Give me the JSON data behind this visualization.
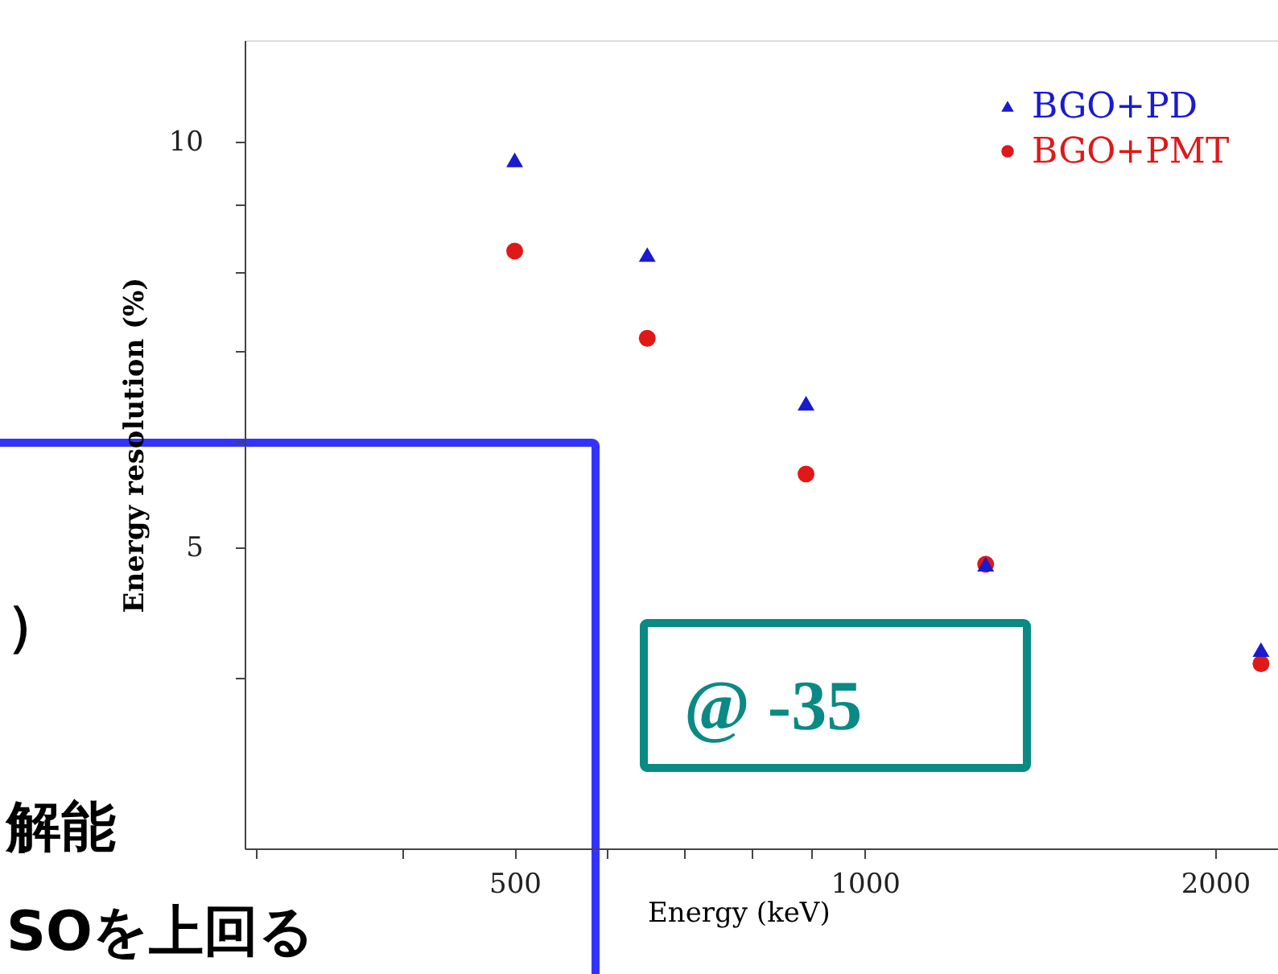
{
  "chart_data": {
    "type": "scatter",
    "xlabel": "Energy (keV)",
    "ylabel": "Energy resolution (%)",
    "log": "xy",
    "grid": false,
    "legend": "top right",
    "xlim": [
      293,
      2265
    ],
    "xticks": [
      {
        "value": 300,
        "label": null
      },
      {
        "value": 400,
        "label": null
      },
      500,
      {
        "value": 600,
        "label": null
      },
      {
        "value": 700,
        "label": null
      },
      {
        "value": 800,
        "label": null
      },
      {
        "value": 900,
        "label": null
      },
      1000,
      2000
    ],
    "ylim": [
      2.99,
      11.9
    ],
    "yticks": [
      {
        "value": 4,
        "label": null
      },
      5,
      {
        "value": 6,
        "label": null
      },
      {
        "value": 7,
        "label": null
      },
      {
        "value": 8,
        "label": null
      },
      {
        "value": 9,
        "label": null
      },
      10
    ],
    "x": [
      500,
      650,
      890,
      1270,
      2190
    ],
    "series": [
      {
        "name": "BGO+PD",
        "color": "#1a1ad0",
        "marker": "triangle",
        "values": [
          9.7,
          8.25,
          6.4,
          4.86,
          4.2
        ]
      },
      {
        "name": "BGO+PMT",
        "color": "#e01818",
        "marker": "circle",
        "values": [
          8.3,
          7.15,
          5.67,
          4.86,
          4.1
        ]
      }
    ],
    "annotations": [
      "@ -35",
      "）",
      "解能",
      "SOを上回る"
    ]
  }
}
